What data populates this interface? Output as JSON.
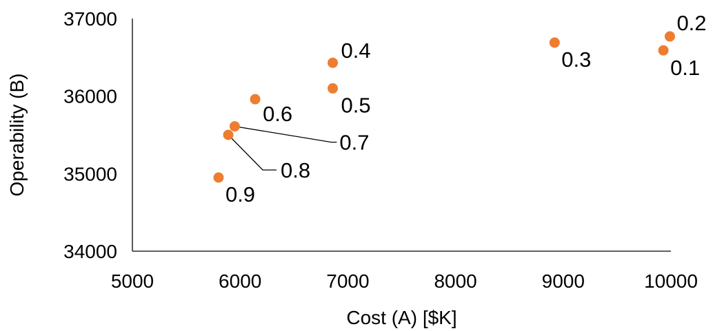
{
  "chart_data": {
    "type": "scatter",
    "title": "",
    "xlabel": "Cost (A) [$K]",
    "ylabel": "Operability (B)",
    "xlim": [
      5000,
      10000
    ],
    "ylim": [
      34000,
      37000
    ],
    "xticks": [
      "5000",
      "6000",
      "7000",
      "8000",
      "9000",
      "10000"
    ],
    "yticks": [
      "34000",
      "35000",
      "36000",
      "37000"
    ],
    "grid": false,
    "legend": "none",
    "marker_color": "#ED7D31",
    "points": [
      {
        "label": "0.1",
        "x": 9930,
        "y": 36590
      },
      {
        "label": "0.2",
        "x": 9990,
        "y": 36770
      },
      {
        "label": "0.3",
        "x": 8920,
        "y": 36690
      },
      {
        "label": "0.4",
        "x": 6860,
        "y": 36430
      },
      {
        "label": "0.5",
        "x": 6860,
        "y": 36100
      },
      {
        "label": "0.6",
        "x": 6140,
        "y": 35960
      },
      {
        "label": "0.7",
        "x": 5950,
        "y": 35610
      },
      {
        "label": "0.8",
        "x": 5890,
        "y": 35500
      },
      {
        "label": "0.9",
        "x": 5800,
        "y": 34950
      }
    ]
  }
}
